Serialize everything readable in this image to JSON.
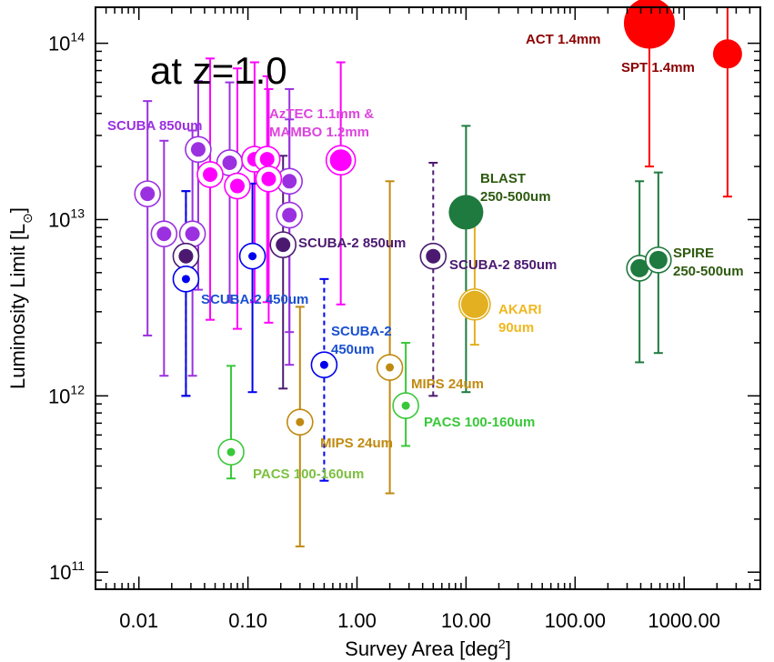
{
  "chart_data": {
    "type": "scatter",
    "title": "",
    "xlabel": "Survey Area [deg",
    "xlabel_sup": "2",
    "xlabel_end": "]",
    "ylabel": "Luminosity Limit [L",
    "ylabel_sub": "⊙",
    "ylabel_end": "]",
    "xscale": "log",
    "yscale": "log",
    "xlim": [
      0.004,
      5000
    ],
    "ylim": [
      80000000000.0,
      160000000000000.0
    ],
    "x_tick_labels": [
      "0.01",
      "0.10",
      "1.00",
      "10.00",
      "100.00",
      "1000.00"
    ],
    "x_ticks": [
      0.01,
      0.1,
      1,
      10,
      100,
      1000
    ],
    "y_ticks": [
      {
        "value": 100000000000.0,
        "mantissa": "10",
        "exp": "11"
      },
      {
        "value": 1000000000000.0,
        "mantissa": "10",
        "exp": "12"
      },
      {
        "value": 10000000000000.0,
        "mantissa": "10",
        "exp": "13"
      },
      {
        "value": 100000000000000.0,
        "mantissa": "10",
        "exp": "14"
      }
    ],
    "big_annotation": "at z=1.0",
    "series": [
      {
        "name": "SCUBA 850um",
        "color": "#9b30e0",
        "ring": true,
        "points": [
          {
            "x": 0.012,
            "y": 14000000000000.0,
            "lo": 2200000000000.0,
            "hi": 47000000000000.0
          },
          {
            "x": 0.017,
            "y": 8300000000000.0,
            "lo": 1300000000000.0,
            "hi": 28000000000000.0
          },
          {
            "x": 0.031,
            "y": 8300000000000.0,
            "lo": 1300000000000.0,
            "hi": 32000000000000.0
          },
          {
            "x": 0.035,
            "y": 25000000000000.0,
            "lo": 4000000000000.0,
            "hi": 61000000000000.0
          },
          {
            "x": 0.068,
            "y": 21000000000000.0,
            "lo": 3400000000000.0,
            "hi": 60000000000000.0
          },
          {
            "x": 0.24,
            "y": 16500000000000.0,
            "lo": 2300000000000.0,
            "hi": 55000000000000.0
          },
          {
            "x": 0.24,
            "y": 10600000000000.0,
            "lo": 1500000000000.0,
            "hi": 37000000000000.0
          }
        ]
      },
      {
        "name": "AzTEC 1.1mm & MAMBO 1.2mm",
        "color": "#ff00ff",
        "ring": true,
        "points": [
          {
            "x": 0.045,
            "y": 18000000000000.0,
            "lo": 2700000000000.0,
            "hi": 82000000000000.0
          },
          {
            "x": 0.08,
            "y": 15500000000000.0,
            "lo": 2400000000000.0,
            "hi": 72000000000000.0
          },
          {
            "x": 0.115,
            "y": 22000000000000.0,
            "lo": 3400000000000.0,
            "hi": 78000000000000.0
          },
          {
            "x": 0.15,
            "y": 22000000000000.0,
            "lo": 3400000000000.0,
            "hi": 65000000000000.0
          },
          {
            "x": 0.155,
            "y": 17000000000000.0,
            "lo": 2600000000000.0,
            "hi": 55000000000000.0
          },
          {
            "x": 0.71,
            "y": 21700000000000.0,
            "lo": 3300000000000.0,
            "hi": 78000000000000.0
          }
        ]
      },
      {
        "name": "SCUBA-2 850um",
        "color": "#4b1a70",
        "ring": true,
        "points": [
          {
            "x": 0.027,
            "y": 6200000000000.0,
            "lo": 1000000000000.0,
            "hi": 14500000000000.0,
            "dashed": true
          },
          {
            "x": 0.21,
            "y": 7200000000000.0,
            "lo": 1100000000000.0,
            "hi": 23000000000000.0
          },
          {
            "x": 5.0,
            "y": 6200000000000.0,
            "lo": 1000000000000.0,
            "hi": 21000000000000.0,
            "dashed": true
          }
        ]
      },
      {
        "name": "SCUBA-2 450um",
        "color": "#0000ee",
        "ring": true,
        "dot_small": true,
        "points": [
          {
            "x": 0.027,
            "y": 4600000000000.0,
            "lo": 1000000000000.0,
            "hi": 14500000000000.0
          },
          {
            "x": 0.11,
            "y": 6200000000000.0,
            "lo": 1050000000000.0,
            "hi": 16000000000000.0
          },
          {
            "x": 0.5,
            "y": 1500000000000.0,
            "lo": 330000000000.0,
            "hi": 4600000000000.0,
            "dashed": true
          }
        ]
      },
      {
        "name": "MIPS 24um",
        "color": "#c08a10",
        "ring": true,
        "dot_small": true,
        "points": [
          {
            "x": 0.3,
            "y": 710000000000.0,
            "lo": 140000000000.0,
            "hi": 3200000000000.0
          },
          {
            "x": 2.0,
            "y": 1450000000000.0,
            "lo": 280000000000.0,
            "hi": 16500000000000.0
          }
        ]
      },
      {
        "name": "PACS 100-160um",
        "color": "#39c839",
        "ring": true,
        "dot_small": true,
        "points": [
          {
            "x": 0.07,
            "y": 480000000000.0,
            "lo": 340000000000.0,
            "hi": 1480000000000.0
          },
          {
            "x": 2.8,
            "y": 880000000000.0,
            "lo": 520000000000.0,
            "hi": 2000000000000.0
          }
        ]
      },
      {
        "name": "AKARI 90um",
        "color": "#e2b020",
        "ring": true,
        "points": [
          {
            "x": 12.0,
            "y": 3300000000000.0,
            "lo": 1950000000000.0,
            "hi": 12000000000000.0
          }
        ]
      },
      {
        "name": "BLAST 250-500um",
        "color": "#1e7a3e",
        "ring": false,
        "points": [
          {
            "x": 10.0,
            "y": 11000000000000.0,
            "lo": 1050000000000.0,
            "hi": 34000000000000.0
          }
        ]
      },
      {
        "name": "SPIRE 250-500um",
        "color": "#1e7a3e",
        "ring": true,
        "points": [
          {
            "x": 390,
            "y": 5300000000000.0,
            "lo": 1550000000000.0,
            "hi": 16500000000000.0
          },
          {
            "x": 580,
            "y": 5900000000000.0,
            "lo": 1750000000000.0,
            "hi": 18500000000000.0
          }
        ]
      },
      {
        "name": "ACT 1.4mm",
        "color": "#ff0000",
        "ring": false,
        "points": [
          {
            "x": 480,
            "y": 130000000000000.0,
            "lo": 20000000000000.0,
            "hi": 160000000000000.0
          }
        ]
      },
      {
        "name": "SPT 1.4mm",
        "color": "#ff0000",
        "ring": false,
        "points": [
          {
            "x": 2500,
            "y": 87000000000000.0,
            "lo": 13500000000000.0,
            "hi": 160000000000000.0
          }
        ]
      }
    ],
    "annotations": [
      {
        "lines": [
          "SCUBA 850um"
        ],
        "color": "#9b30e0"
      },
      {
        "lines": [
          "AzTEC 1.1mm &",
          "MAMBO 1.2mm"
        ],
        "color": "#dd44dd"
      },
      {
        "lines": [
          "SCUBA-2 850um"
        ],
        "color": "#4b1a70"
      },
      {
        "lines": [
          "SCUBA-2 850um"
        ],
        "color": "#4b1a70"
      },
      {
        "lines": [
          "SCUBA-2 450um"
        ],
        "color": "#1a50d0"
      },
      {
        "lines": [
          "SCUBA-2",
          "450um"
        ],
        "color": "#1a50d0"
      },
      {
        "lines": [
          "MIPS 24um"
        ],
        "color": "#c08a10"
      },
      {
        "lines": [
          "MIPS 24um"
        ],
        "color": "#c08a10"
      },
      {
        "lines": [
          "PACS 100-160um"
        ],
        "color": "#39c839"
      },
      {
        "lines": [
          "PACS 100-160um"
        ],
        "color": "#7cc040"
      },
      {
        "lines": [
          "AKARI",
          "90um"
        ],
        "color": "#f0b820"
      },
      {
        "lines": [
          "BLAST",
          "250-500um"
        ],
        "color": "#2e5a10"
      },
      {
        "lines": [
          "SPIRE",
          "250-500um"
        ],
        "color": "#2e5a10"
      },
      {
        "lines": [
          "ACT 1.4mm"
        ],
        "color": "#8b0000"
      },
      {
        "lines": [
          "SPT 1.4mm"
        ],
        "color": "#8b0000"
      }
    ]
  }
}
